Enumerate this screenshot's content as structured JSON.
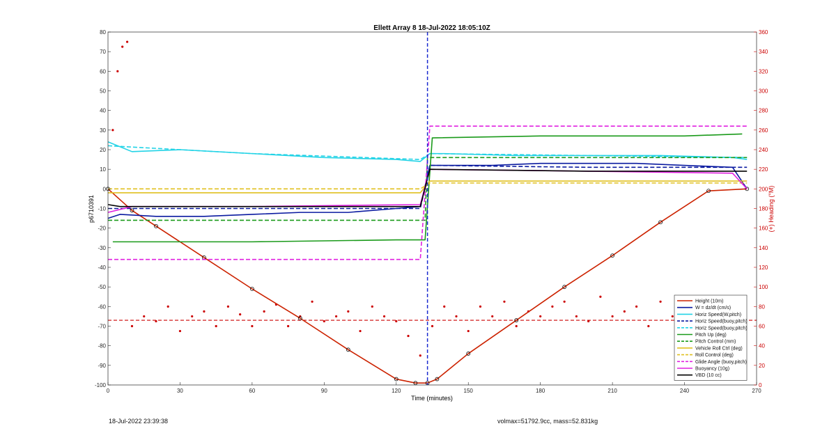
{
  "chart_data": {
    "type": "line",
    "title": "Ellett Array 8 18-Jul-2022 18:05:10Z",
    "xlabel": "Time (minutes)",
    "ylabel": "p6710391",
    "y2label": "(+) Heading (°M)",
    "xlim": [
      0,
      270
    ],
    "ylim": [
      -100,
      80
    ],
    "y2lim": [
      0,
      360
    ],
    "xticks": [
      0,
      30,
      60,
      90,
      120,
      150,
      180,
      210,
      240,
      270
    ],
    "yticks": [
      -100,
      -90,
      -80,
      -70,
      -60,
      -50,
      -40,
      -30,
      -20,
      -10,
      0,
      10,
      20,
      30,
      40,
      50,
      60,
      70,
      80
    ],
    "y2ticks": [
      0,
      20,
      40,
      60,
      80,
      100,
      120,
      140,
      160,
      180,
      200,
      220,
      240,
      260,
      280,
      300,
      320,
      340,
      360
    ],
    "legend_position": "bottom-right",
    "vertical_marker_x": 133,
    "heading_mean_line": 66,
    "series": [
      {
        "name": "Height (10m)",
        "color": "#cc2200",
        "style": "solid",
        "x": [
          0,
          10,
          20,
          40,
          60,
          80,
          100,
          120,
          128,
          133,
          137,
          150,
          170,
          190,
          210,
          230,
          250,
          266
        ],
        "y": [
          0,
          -11,
          -19,
          -35,
          -51,
          -66,
          -82,
          -97,
          -99,
          -99,
          -97,
          -84,
          -67,
          -50,
          -34,
          -17,
          -1,
          0
        ]
      },
      {
        "name": "W = dz/dt (cm/s)",
        "color": "#0a1aa0",
        "style": "solid",
        "x": [
          0,
          5,
          20,
          40,
          60,
          80,
          100,
          120,
          130,
          134,
          140,
          160,
          180,
          200,
          220,
          240,
          260,
          266
        ],
        "y": [
          -15,
          -13,
          -14,
          -14,
          -13,
          -12,
          -12,
          -10,
          -9,
          12,
          12,
          12,
          13,
          13,
          13,
          12,
          11,
          0
        ]
      },
      {
        "name": "Horiz Speed(W,pitch)",
        "color": "#22d3e6",
        "style": "solid",
        "x": [
          0,
          10,
          30,
          60,
          90,
          120,
          130,
          134,
          140,
          170,
          200,
          230,
          260,
          266
        ],
        "y": [
          24,
          19,
          20,
          18,
          16,
          15,
          14,
          18,
          18,
          17,
          17,
          17,
          16,
          15
        ]
      },
      {
        "name": "Horiz Speed(buoy,pitch)",
        "color": "#0a1aa0",
        "style": "dash",
        "x": [
          0,
          60,
          130,
          134,
          200,
          266
        ],
        "y": [
          -10,
          -10,
          -10,
          12,
          11,
          11
        ]
      },
      {
        "name": "Horiz Speed(buoy,pitch)",
        "color": "#22d3e6",
        "style": "dash",
        "x": [
          0,
          60,
          130,
          134,
          200,
          266
        ],
        "y": [
          22,
          18,
          15,
          18,
          17,
          16
        ]
      },
      {
        "name": "Pitch Up (deg)",
        "color": "#1a9a1a",
        "style": "solid",
        "x": [
          2,
          60,
          120,
          132,
          135,
          180,
          240,
          264
        ],
        "y": [
          -27,
          -27,
          -26,
          -26,
          26,
          27,
          27,
          28
        ]
      },
      {
        "name": "Pitch Control (mm)",
        "color": "#1a9a1a",
        "style": "dash",
        "x": [
          0,
          132,
          133,
          266
        ],
        "y": [
          -16,
          -16,
          16,
          16
        ]
      },
      {
        "name": "Vehicle Roll Ctrl (deg)",
        "color": "#e0c020",
        "style": "solid",
        "x": [
          0,
          130,
          134,
          266
        ],
        "y": [
          -2,
          -2,
          4,
          4
        ]
      },
      {
        "name": "Roll Control (deg)",
        "color": "#e0c020",
        "style": "dash",
        "x": [
          0,
          130,
          134,
          266
        ],
        "y": [
          0,
          0,
          3,
          3
        ]
      },
      {
        "name": "Glide Angle (buoy,pitch)",
        "color": "#e020e0",
        "style": "dash",
        "x": [
          0,
          130,
          134,
          266
        ],
        "y": [
          -36,
          -36,
          32,
          32
        ]
      },
      {
        "name": "Buoyancy (10g)",
        "color": "#e020e0",
        "style": "solid",
        "x": [
          0,
          10,
          60,
          130,
          134,
          200,
          260,
          266
        ],
        "y": [
          -12,
          -9,
          -9,
          -8,
          10,
          9,
          8,
          0
        ]
      },
      {
        "name": "VBD (10 cc)",
        "color": "#000000",
        "style": "solid",
        "x": [
          0,
          5,
          130,
          134,
          200,
          266
        ],
        "y": [
          -8,
          -9,
          -9,
          10,
          9,
          9
        ]
      },
      {
        "name": "Heading",
        "axis": "right",
        "color": "#cc0000",
        "style": "markers",
        "x": [
          2,
          4,
          6,
          8,
          10,
          15,
          20,
          25,
          30,
          35,
          40,
          45,
          50,
          55,
          60,
          65,
          70,
          75,
          80,
          85,
          90,
          95,
          100,
          105,
          110,
          115,
          120,
          125,
          130,
          135,
          140,
          145,
          150,
          155,
          160,
          165,
          170,
          175,
          180,
          185,
          190,
          195,
          200,
          205,
          210,
          215,
          220,
          225,
          230,
          235,
          240,
          245,
          250,
          255,
          260,
          265
        ],
        "y": [
          260,
          320,
          345,
          350,
          60,
          70,
          65,
          80,
          55,
          70,
          75,
          60,
          80,
          72,
          60,
          75,
          82,
          60,
          70,
          85,
          65,
          70,
          75,
          55,
          80,
          70,
          65,
          50,
          30,
          60,
          80,
          70,
          55,
          80,
          70,
          85,
          60,
          75,
          70,
          80,
          85,
          70,
          65,
          90,
          70,
          75,
          80,
          60,
          85,
          70,
          75,
          80,
          60,
          85,
          70,
          50
        ]
      }
    ],
    "footer_date": "18-Jul-2022 23:39:38",
    "footer_info": "volmax=51792.9cc, mass=52.831kg"
  }
}
